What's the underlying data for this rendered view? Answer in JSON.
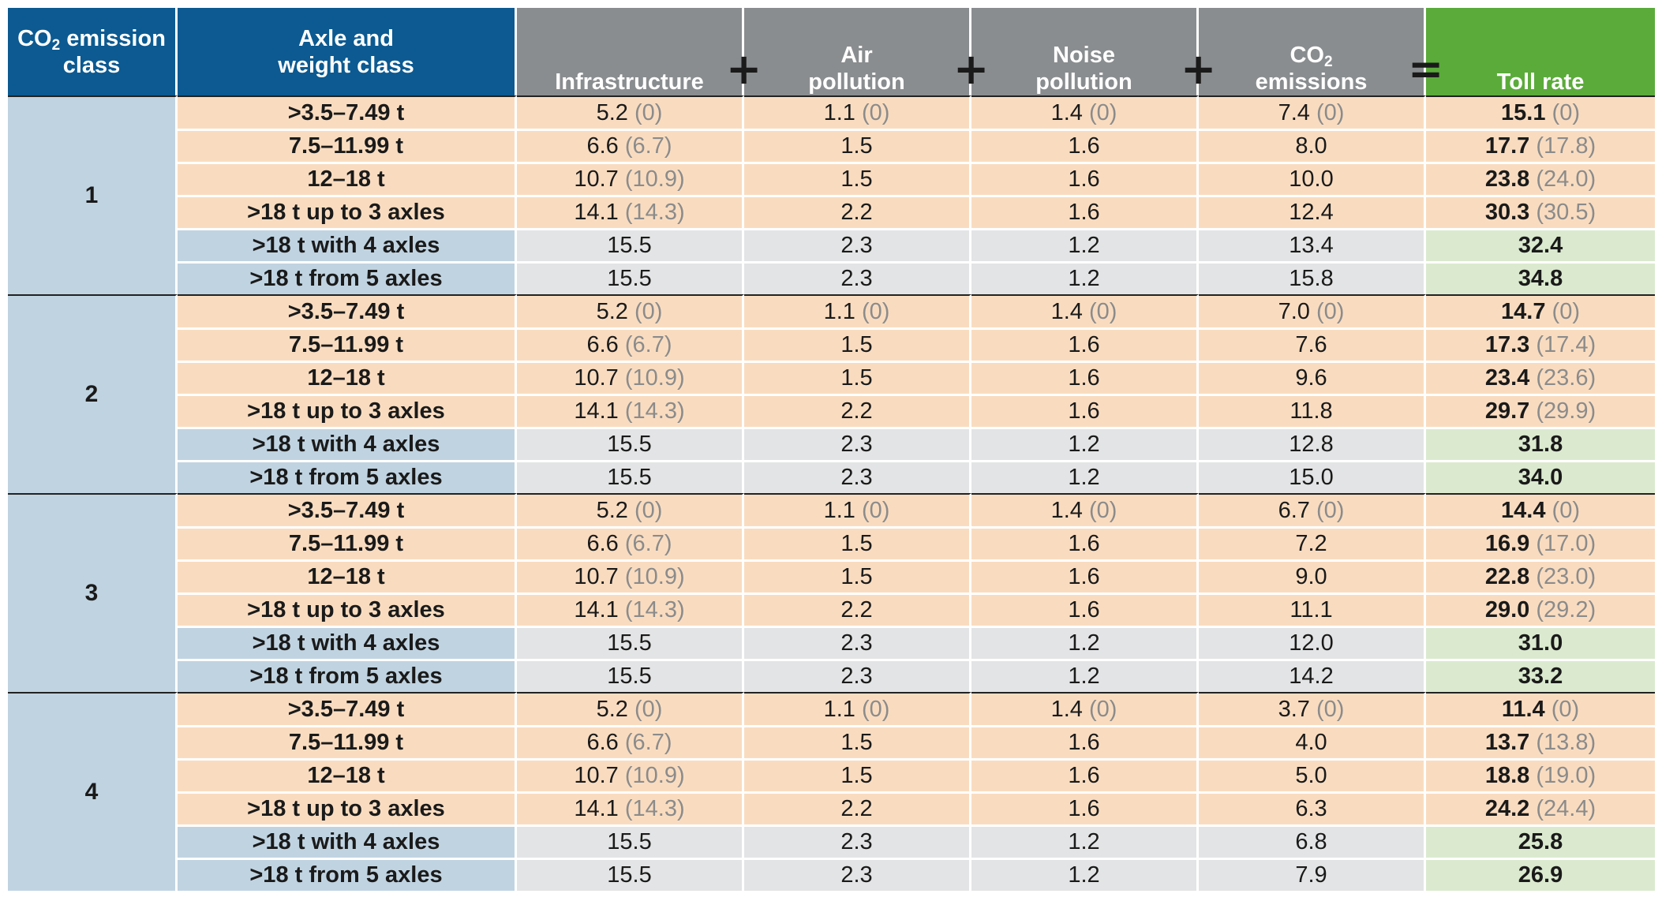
{
  "headers": {
    "co2_class_line1": "CO",
    "co2_class_sub": "2",
    "co2_class_line2_tail": " emission",
    "co2_class_line3": "class",
    "axle_line1": "Axle and",
    "axle_line2": "weight class",
    "infrastructure": "Infrastructure",
    "air_line1": "Air",
    "air_line2": "pollution",
    "noise_line1": "Noise",
    "noise_line2": "pollution",
    "co2em_line1": "CO",
    "co2em_sub": "2",
    "co2em_line2": "emissions",
    "toll": "Toll rate"
  },
  "operators": {
    "plus": "+",
    "equals": "="
  },
  "colors": {
    "header_blue": "#0c5a91",
    "header_grey": "#8a8d8f",
    "header_green": "#5bab3b",
    "row_blue": "#c0d3e1",
    "row_orange": "#f9dcc0",
    "row_grey": "#e3e4e5",
    "row_green": "#dbeacf"
  },
  "groups": [
    {
      "co2_class": "1",
      "rows": [
        {
          "axle": ">3.5–7.49 t",
          "infra": "5.2",
          "infra_prev": "(0)",
          "air": "1.1",
          "air_prev": "(0)",
          "noise": "1.4",
          "noise_prev": "(0)",
          "co2": "7.4",
          "co2_prev": "(0)",
          "toll": "15.1",
          "toll_prev": "(0)"
        },
        {
          "axle": "7.5–11.99 t",
          "infra": "6.6",
          "infra_prev": "(6.7)",
          "air": "1.5",
          "air_prev": "",
          "noise": "1.6",
          "noise_prev": "",
          "co2": "8.0",
          "co2_prev": "",
          "toll": "17.7",
          "toll_prev": "(17.8)"
        },
        {
          "axle": "12–18 t",
          "infra": "10.7",
          "infra_prev": "(10.9)",
          "air": "1.5",
          "air_prev": "",
          "noise": "1.6",
          "noise_prev": "",
          "co2": "10.0",
          "co2_prev": "",
          "toll": "23.8",
          "toll_prev": "(24.0)"
        },
        {
          "axle": ">18 t up to 3 axles",
          "infra": "14.1",
          "infra_prev": "(14.3)",
          "air": "2.2",
          "air_prev": "",
          "noise": "1.6",
          "noise_prev": "",
          "co2": "12.4",
          "co2_prev": "",
          "toll": "30.3",
          "toll_prev": "(30.5)"
        },
        {
          "axle": ">18 t with 4 axles",
          "infra": "15.5",
          "infra_prev": "",
          "air": "2.3",
          "air_prev": "",
          "noise": "1.2",
          "noise_prev": "",
          "co2": "13.4",
          "co2_prev": "",
          "toll": "32.4",
          "toll_prev": ""
        },
        {
          "axle": ">18 t from 5 axles",
          "infra": "15.5",
          "infra_prev": "",
          "air": "2.3",
          "air_prev": "",
          "noise": "1.2",
          "noise_prev": "",
          "co2": "15.8",
          "co2_prev": "",
          "toll": "34.8",
          "toll_prev": ""
        }
      ]
    },
    {
      "co2_class": "2",
      "rows": [
        {
          "axle": ">3.5–7.49 t",
          "infra": "5.2",
          "infra_prev": "(0)",
          "air": "1.1",
          "air_prev": "(0)",
          "noise": "1.4",
          "noise_prev": "(0)",
          "co2": "7.0",
          "co2_prev": "(0)",
          "toll": "14.7",
          "toll_prev": "(0)"
        },
        {
          "axle": "7.5–11.99 t",
          "infra": "6.6",
          "infra_prev": "(6.7)",
          "air": "1.5",
          "air_prev": "",
          "noise": "1.6",
          "noise_prev": "",
          "co2": "7.6",
          "co2_prev": "",
          "toll": "17.3",
          "toll_prev": "(17.4)"
        },
        {
          "axle": "12–18 t",
          "infra": "10.7",
          "infra_prev": "(10.9)",
          "air": "1.5",
          "air_prev": "",
          "noise": "1.6",
          "noise_prev": "",
          "co2": "9.6",
          "co2_prev": "",
          "toll": "23.4",
          "toll_prev": "(23.6)"
        },
        {
          "axle": ">18 t up to 3 axles",
          "infra": "14.1",
          "infra_prev": "(14.3)",
          "air": "2.2",
          "air_prev": "",
          "noise": "1.6",
          "noise_prev": "",
          "co2": "11.8",
          "co2_prev": "",
          "toll": "29.7",
          "toll_prev": "(29.9)"
        },
        {
          "axle": ">18 t with 4 axles",
          "infra": "15.5",
          "infra_prev": "",
          "air": "2.3",
          "air_prev": "",
          "noise": "1.2",
          "noise_prev": "",
          "co2": "12.8",
          "co2_prev": "",
          "toll": "31.8",
          "toll_prev": ""
        },
        {
          "axle": ">18 t from 5 axles",
          "infra": "15.5",
          "infra_prev": "",
          "air": "2.3",
          "air_prev": "",
          "noise": "1.2",
          "noise_prev": "",
          "co2": "15.0",
          "co2_prev": "",
          "toll": "34.0",
          "toll_prev": ""
        }
      ]
    },
    {
      "co2_class": "3",
      "rows": [
        {
          "axle": ">3.5–7.49 t",
          "infra": "5.2",
          "infra_prev": "(0)",
          "air": "1.1",
          "air_prev": "(0)",
          "noise": "1.4",
          "noise_prev": "(0)",
          "co2": "6.7",
          "co2_prev": "(0)",
          "toll": "14.4",
          "toll_prev": "(0)"
        },
        {
          "axle": "7.5–11.99 t",
          "infra": "6.6",
          "infra_prev": "(6.7)",
          "air": "1.5",
          "air_prev": "",
          "noise": "1.6",
          "noise_prev": "",
          "co2": "7.2",
          "co2_prev": "",
          "toll": "16.9",
          "toll_prev": "(17.0)"
        },
        {
          "axle": "12–18 t",
          "infra": "10.7",
          "infra_prev": "(10.9)",
          "air": "1.5",
          "air_prev": "",
          "noise": "1.6",
          "noise_prev": "",
          "co2": "9.0",
          "co2_prev": "",
          "toll": "22.8",
          "toll_prev": "(23.0)"
        },
        {
          "axle": ">18 t up to 3 axles",
          "infra": "14.1",
          "infra_prev": "(14.3)",
          "air": "2.2",
          "air_prev": "",
          "noise": "1.6",
          "noise_prev": "",
          "co2": "11.1",
          "co2_prev": "",
          "toll": "29.0",
          "toll_prev": "(29.2)"
        },
        {
          "axle": ">18 t with 4 axles",
          "infra": "15.5",
          "infra_prev": "",
          "air": "2.3",
          "air_prev": "",
          "noise": "1.2",
          "noise_prev": "",
          "co2": "12.0",
          "co2_prev": "",
          "toll": "31.0",
          "toll_prev": ""
        },
        {
          "axle": ">18 t from 5 axles",
          "infra": "15.5",
          "infra_prev": "",
          "air": "2.3",
          "air_prev": "",
          "noise": "1.2",
          "noise_prev": "",
          "co2": "14.2",
          "co2_prev": "",
          "toll": "33.2",
          "toll_prev": ""
        }
      ]
    },
    {
      "co2_class": "4",
      "rows": [
        {
          "axle": ">3.5–7.49 t",
          "infra": "5.2",
          "infra_prev": "(0)",
          "air": "1.1",
          "air_prev": "(0)",
          "noise": "1.4",
          "noise_prev": "(0)",
          "co2": "3.7",
          "co2_prev": "(0)",
          "toll": "11.4",
          "toll_prev": "(0)"
        },
        {
          "axle": "7.5–11.99 t",
          "infra": "6.6",
          "infra_prev": "(6.7)",
          "air": "1.5",
          "air_prev": "",
          "noise": "1.6",
          "noise_prev": "",
          "co2": "4.0",
          "co2_prev": "",
          "toll": "13.7",
          "toll_prev": "(13.8)"
        },
        {
          "axle": "12–18 t",
          "infra": "10.7",
          "infra_prev": "(10.9)",
          "air": "1.5",
          "air_prev": "",
          "noise": "1.6",
          "noise_prev": "",
          "co2": "5.0",
          "co2_prev": "",
          "toll": "18.8",
          "toll_prev": "(19.0)"
        },
        {
          "axle": ">18 t up to 3 axles",
          "infra": "14.1",
          "infra_prev": "(14.3)",
          "air": "2.2",
          "air_prev": "",
          "noise": "1.6",
          "noise_prev": "",
          "co2": "6.3",
          "co2_prev": "",
          "toll": "24.2",
          "toll_prev": "(24.4)"
        },
        {
          "axle": ">18 t with 4 axles",
          "infra": "15.5",
          "infra_prev": "",
          "air": "2.3",
          "air_prev": "",
          "noise": "1.2",
          "noise_prev": "",
          "co2": "6.8",
          "co2_prev": "",
          "toll": "25.8",
          "toll_prev": ""
        },
        {
          "axle": ">18 t from 5 axles",
          "infra": "15.5",
          "infra_prev": "",
          "air": "2.3",
          "air_prev": "",
          "noise": "1.2",
          "noise_prev": "",
          "co2": "7.9",
          "co2_prev": "",
          "toll": "26.9",
          "toll_prev": ""
        }
      ]
    }
  ]
}
